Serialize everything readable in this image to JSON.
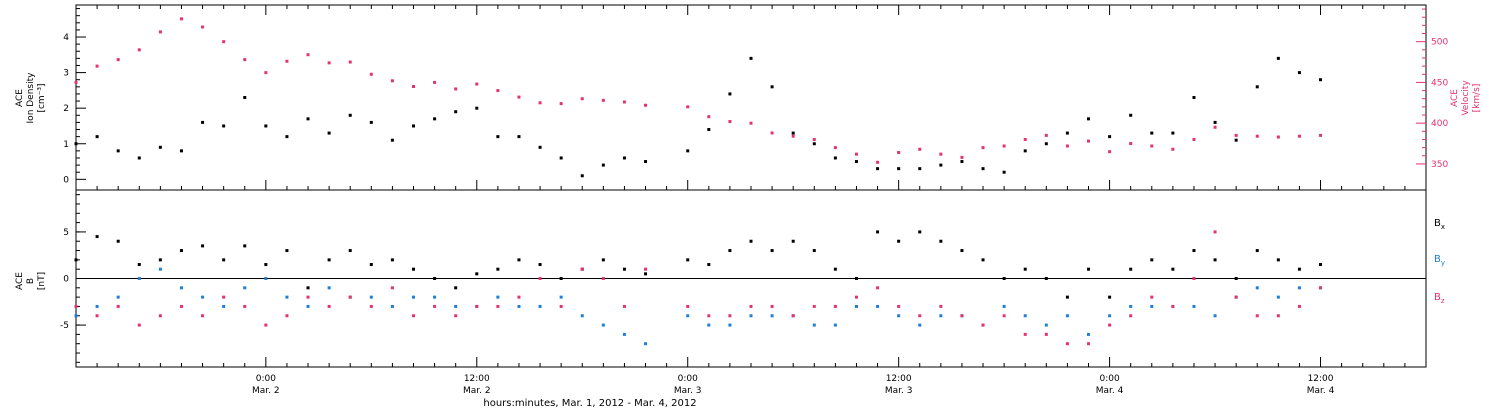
{
  "colors": {
    "black": "#000000",
    "pink": "#e6336b",
    "blue": "#1f7fd6"
  },
  "xaxis": {
    "label": "hours:minutes, Mar. 1, 2012 - Mar. 4, 2012",
    "range_hours": [
      0,
      64
    ],
    "ticks": [
      {
        "h": 9,
        "line1": "0:00",
        "line2": "Mar. 2"
      },
      {
        "h": 19,
        "line1": "12:00",
        "line2": "Mar. 2"
      },
      {
        "h": 29,
        "line1": "0:00",
        "line2": "Mar. 3"
      },
      {
        "h": 39,
        "line1": "12:00",
        "line2": "Mar. 3"
      },
      {
        "h": 49,
        "line1": "0:00",
        "line2": "Mar. 4"
      },
      {
        "h": 59,
        "line1": "12:00",
        "line2": "Mar. 4"
      }
    ]
  },
  "chart_data": [
    {
      "type": "scatter",
      "panel": "top",
      "left_axis": {
        "title_lines": [
          "ACE",
          "Ion Density",
          "[cm⁻³]"
        ],
        "range": [
          -0.3,
          4.9
        ],
        "ticks": [
          "0",
          "1",
          "2",
          "3",
          "4"
        ]
      },
      "right_axis": {
        "title_lines": [
          "ACE",
          "Velocity",
          "[km/s]"
        ],
        "range": [
          318,
          545
        ],
        "ticks": [
          "350",
          "400",
          "450",
          "500"
        ]
      },
      "series": [
        {
          "axis": "left",
          "color": "black",
          "x": [
            0,
            1,
            2,
            3,
            4,
            5,
            6,
            7,
            8,
            9,
            10,
            11,
            12,
            13,
            14,
            15,
            16,
            17,
            18,
            19,
            20,
            21,
            22,
            23,
            24,
            25,
            26,
            27,
            28,
            29,
            30,
            31,
            32,
            33,
            34,
            35,
            36,
            37,
            38,
            39,
            40,
            41,
            42,
            43,
            44,
            45,
            46,
            47,
            48,
            49,
            50,
            51,
            52,
            53,
            54,
            55,
            56,
            57,
            58,
            59
          ],
          "y": [
            1.0,
            1.2,
            0.8,
            0.6,
            0.9,
            0.8,
            1.6,
            1.5,
            2.3,
            1.5,
            1.2,
            1.7,
            1.3,
            1.8,
            1.6,
            1.1,
            1.5,
            1.7,
            1.9,
            2.0,
            1.2,
            1.2,
            0.9,
            0.6,
            0.1,
            0.4,
            0.6,
            0.5,
            null,
            0.8,
            1.4,
            2.4,
            3.4,
            2.6,
            1.3,
            1.0,
            0.6,
            0.5,
            0.3,
            0.3,
            0.3,
            0.4,
            0.5,
            0.3,
            0.2,
            0.8,
            1.0,
            1.3,
            1.7,
            1.2,
            1.8,
            1.3,
            1.3,
            2.3,
            1.6,
            1.1,
            2.6,
            3.4,
            3.0,
            2.8
          ]
        },
        {
          "axis": "right",
          "color": "pink",
          "x": [
            0,
            1,
            2,
            3,
            4,
            5,
            6,
            7,
            8,
            9,
            10,
            11,
            12,
            13,
            14,
            15,
            16,
            17,
            18,
            19,
            20,
            21,
            22,
            23,
            24,
            25,
            26,
            27,
            28,
            29,
            30,
            31,
            32,
            33,
            34,
            35,
            36,
            37,
            38,
            39,
            40,
            41,
            42,
            43,
            44,
            45,
            46,
            47,
            48,
            49,
            50,
            51,
            52,
            53,
            54,
            55,
            56,
            57,
            58,
            59
          ],
          "y": [
            450,
            470,
            478,
            490,
            512,
            528,
            518,
            500,
            478,
            462,
            476,
            484,
            474,
            475,
            460,
            452,
            445,
            450,
            442,
            448,
            440,
            432,
            425,
            424,
            430,
            428,
            426,
            422,
            null,
            420,
            408,
            402,
            400,
            388,
            384,
            380,
            370,
            362,
            352,
            364,
            368,
            362,
            358,
            370,
            372,
            380,
            385,
            372,
            378,
            365,
            375,
            372,
            368,
            380,
            395,
            385,
            384,
            383,
            384,
            385
          ]
        }
      ]
    },
    {
      "type": "scatter",
      "panel": "bottom",
      "left_axis": {
        "title_lines": [
          "ACE",
          "B",
          "[nT]"
        ],
        "range": [
          -9.5,
          9.5
        ],
        "ticks": [
          "-5",
          "0",
          "5"
        ]
      },
      "legend": [
        {
          "name": "B",
          "sub": "x",
          "color": "black"
        },
        {
          "name": "B",
          "sub": "y",
          "color": "blue"
        },
        {
          "name": "B",
          "sub": "z",
          "color": "pink"
        }
      ],
      "series": [
        {
          "name": "Bx",
          "color": "black",
          "x": [
            0,
            1,
            2,
            3,
            4,
            5,
            6,
            7,
            8,
            9,
            10,
            11,
            12,
            13,
            14,
            15,
            16,
            17,
            18,
            19,
            20,
            21,
            22,
            23,
            24,
            25,
            26,
            27,
            28,
            29,
            30,
            31,
            32,
            33,
            34,
            35,
            36,
            37,
            38,
            39,
            40,
            41,
            42,
            43,
            44,
            45,
            46,
            47,
            48,
            49,
            50,
            51,
            52,
            53,
            54,
            55,
            56,
            57,
            58,
            59
          ],
          "y": [
            2,
            4.5,
            4.0,
            1.5,
            2,
            3,
            3.5,
            2,
            3.5,
            1.5,
            3,
            -1,
            2,
            3,
            1.5,
            2,
            1,
            0,
            -1,
            0.5,
            1,
            2,
            1.5,
            0,
            1,
            2,
            1,
            0.5,
            null,
            2,
            1.5,
            3,
            4,
            3,
            4,
            3,
            1,
            0,
            5,
            4,
            5,
            4,
            3,
            2,
            0,
            1,
            0,
            -2,
            1,
            -2,
            1,
            2,
            1,
            3,
            2,
            0,
            3,
            2,
            1,
            1.5
          ]
        },
        {
          "name": "By",
          "color": "blue",
          "x": [
            0,
            1,
            2,
            3,
            4,
            5,
            6,
            7,
            8,
            9,
            10,
            11,
            12,
            13,
            14,
            15,
            16,
            17,
            18,
            19,
            20,
            21,
            22,
            23,
            24,
            25,
            26,
            27,
            28,
            29,
            30,
            31,
            32,
            33,
            34,
            35,
            36,
            37,
            38,
            39,
            40,
            41,
            42,
            43,
            44,
            45,
            46,
            47,
            48,
            49,
            50,
            51,
            52,
            53,
            54,
            55,
            56,
            57,
            58,
            59
          ],
          "y": [
            -4,
            -3,
            -2,
            0,
            1,
            -1,
            -2,
            -3,
            -1,
            0,
            -2,
            -3,
            -1,
            -2,
            -2,
            -3,
            -2,
            -2,
            -3,
            -3,
            -2,
            -3,
            -3,
            -2,
            -4,
            -5,
            -6,
            -7,
            null,
            -4,
            -5,
            -5,
            -4,
            -4,
            -4,
            -5,
            -5,
            -3,
            -3,
            -4,
            -5,
            -4,
            -4,
            -5,
            -3,
            -4,
            -5,
            -4,
            -6,
            -4,
            -3,
            -3,
            -3,
            -3,
            -4,
            -2,
            -1,
            -2,
            -1,
            -1
          ]
        },
        {
          "name": "Bz",
          "color": "pink",
          "x": [
            0,
            1,
            2,
            3,
            4,
            5,
            6,
            7,
            8,
            9,
            10,
            11,
            12,
            13,
            14,
            15,
            16,
            17,
            18,
            19,
            20,
            21,
            22,
            23,
            24,
            25,
            26,
            27,
            28,
            29,
            30,
            31,
            32,
            33,
            34,
            35,
            36,
            37,
            38,
            39,
            40,
            41,
            42,
            43,
            44,
            45,
            46,
            47,
            48,
            49,
            50,
            51,
            52,
            53,
            54,
            55,
            56,
            57,
            58,
            59
          ],
          "y": [
            -3,
            -4,
            -3,
            -5,
            -4,
            -3,
            -4,
            -2,
            -3,
            -5,
            -4,
            -2,
            -3,
            -2,
            -3,
            -1,
            -4,
            -3,
            -4,
            -3,
            -3,
            -2,
            0,
            -3,
            1,
            0,
            -3,
            1,
            null,
            -3,
            -4,
            -4,
            -3,
            -3,
            -4,
            -3,
            -3,
            -2,
            -1,
            -3,
            -4,
            -3,
            -4,
            -5,
            -4,
            -6,
            -6,
            -7,
            -7,
            -5,
            -4,
            -2,
            -3,
            0,
            5,
            -2,
            -4,
            -4,
            -3,
            -1
          ]
        }
      ]
    }
  ]
}
